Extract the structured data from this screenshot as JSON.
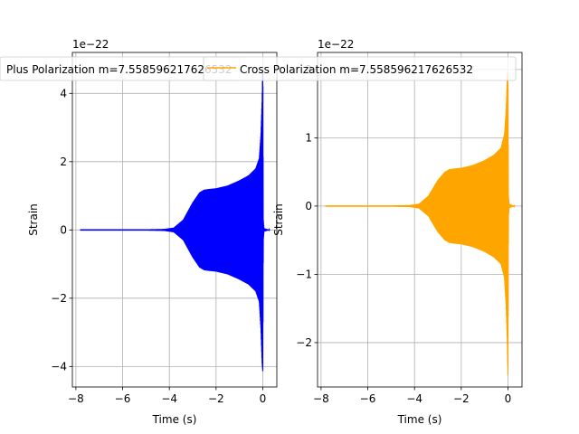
{
  "chart_data": [
    {
      "type": "line",
      "title": "",
      "xlabel": "Time (s)",
      "ylabel": "Strain",
      "offset_label": "1e−22",
      "scale": 1e-22,
      "xlim": [
        -8.15,
        0.6
      ],
      "ylim": [
        -4.6,
        5.2
      ],
      "xticks": [
        -8,
        -6,
        -4,
        -2,
        0
      ],
      "yticks": [
        -4,
        -2,
        0,
        2,
        4
      ],
      "xtick_labels": [
        "−8",
        "−6",
        "−4",
        "−2",
        "0"
      ],
      "ytick_labels": [
        "−4",
        "−2",
        "0",
        "2",
        "4"
      ],
      "grid": true,
      "legend": {
        "placement": "top",
        "entries": [
          "Plus Polarization m=7.558596217626532"
        ]
      },
      "series": [
        {
          "name": "Plus Polarization m=7.558596217626532",
          "color": "#0000ff",
          "envelope": {
            "t": [
              -7.8,
              -6.0,
              -5.0,
              -4.2,
              -3.8,
              -3.4,
              -3.0,
              -2.7,
              -2.5,
              -2.3,
              -2.0,
              -1.5,
              -1.0,
              -0.6,
              -0.3,
              -0.15,
              -0.08,
              -0.03,
              0.0,
              0.02,
              0.05,
              0.3
            ],
            "upper": [
              0.02,
              0.02,
              0.02,
              0.03,
              0.07,
              0.3,
              0.8,
              1.1,
              1.18,
              1.2,
              1.22,
              1.3,
              1.45,
              1.6,
              1.8,
              2.1,
              2.8,
              3.8,
              4.9,
              0.3,
              0.05,
              0.0
            ],
            "lower": [
              -0.02,
              -0.02,
              -0.02,
              -0.03,
              -0.07,
              -0.3,
              -0.8,
              -1.1,
              -1.18,
              -1.2,
              -1.22,
              -1.3,
              -1.45,
              -1.6,
              -1.8,
              -2.1,
              -2.9,
              -3.9,
              -4.15,
              -0.3,
              -0.05,
              0.0
            ]
          }
        }
      ]
    },
    {
      "type": "line",
      "title": "",
      "xlabel": "Time (s)",
      "ylabel": "Strain",
      "offset_label": "1e−22",
      "scale": 1e-22,
      "xlim": [
        -8.15,
        0.6
      ],
      "ylim": [
        -2.65,
        2.25
      ],
      "xticks": [
        -8,
        -6,
        -4,
        -2,
        0
      ],
      "yticks": [
        -2,
        -1,
        0,
        1,
        2
      ],
      "xtick_labels": [
        "−8",
        "−6",
        "−4",
        "−2",
        "0"
      ],
      "ytick_labels": [
        "−2",
        "−1",
        "0",
        "1",
        "2"
      ],
      "grid": true,
      "legend": {
        "placement": "top",
        "entries": [
          "Cross Polarization m=7.558596217626532"
        ]
      },
      "series": [
        {
          "name": "Cross Polarization m=7.558596217626532",
          "color": "#ffa500",
          "envelope": {
            "t": [
              -7.8,
              -6.0,
              -5.0,
              -4.2,
              -3.8,
              -3.4,
              -3.0,
              -2.7,
              -2.5,
              -2.3,
              -2.0,
              -1.5,
              -1.0,
              -0.6,
              -0.3,
              -0.15,
              -0.08,
              -0.03,
              0.0,
              0.02,
              0.05,
              0.3
            ],
            "upper": [
              0.01,
              0.01,
              0.01,
              0.015,
              0.035,
              0.15,
              0.38,
              0.5,
              0.54,
              0.55,
              0.56,
              0.6,
              0.67,
              0.75,
              0.85,
              1.05,
              1.4,
              1.9,
              2.0,
              0.15,
              0.03,
              0.0
            ],
            "lower": [
              -0.01,
              -0.01,
              -0.01,
              -0.015,
              -0.035,
              -0.15,
              -0.38,
              -0.5,
              -0.54,
              -0.55,
              -0.56,
              -0.6,
              -0.67,
              -0.75,
              -0.85,
              -1.05,
              -1.45,
              -2.0,
              -2.5,
              -0.15,
              -0.03,
              0.0
            ]
          }
        }
      ]
    }
  ]
}
